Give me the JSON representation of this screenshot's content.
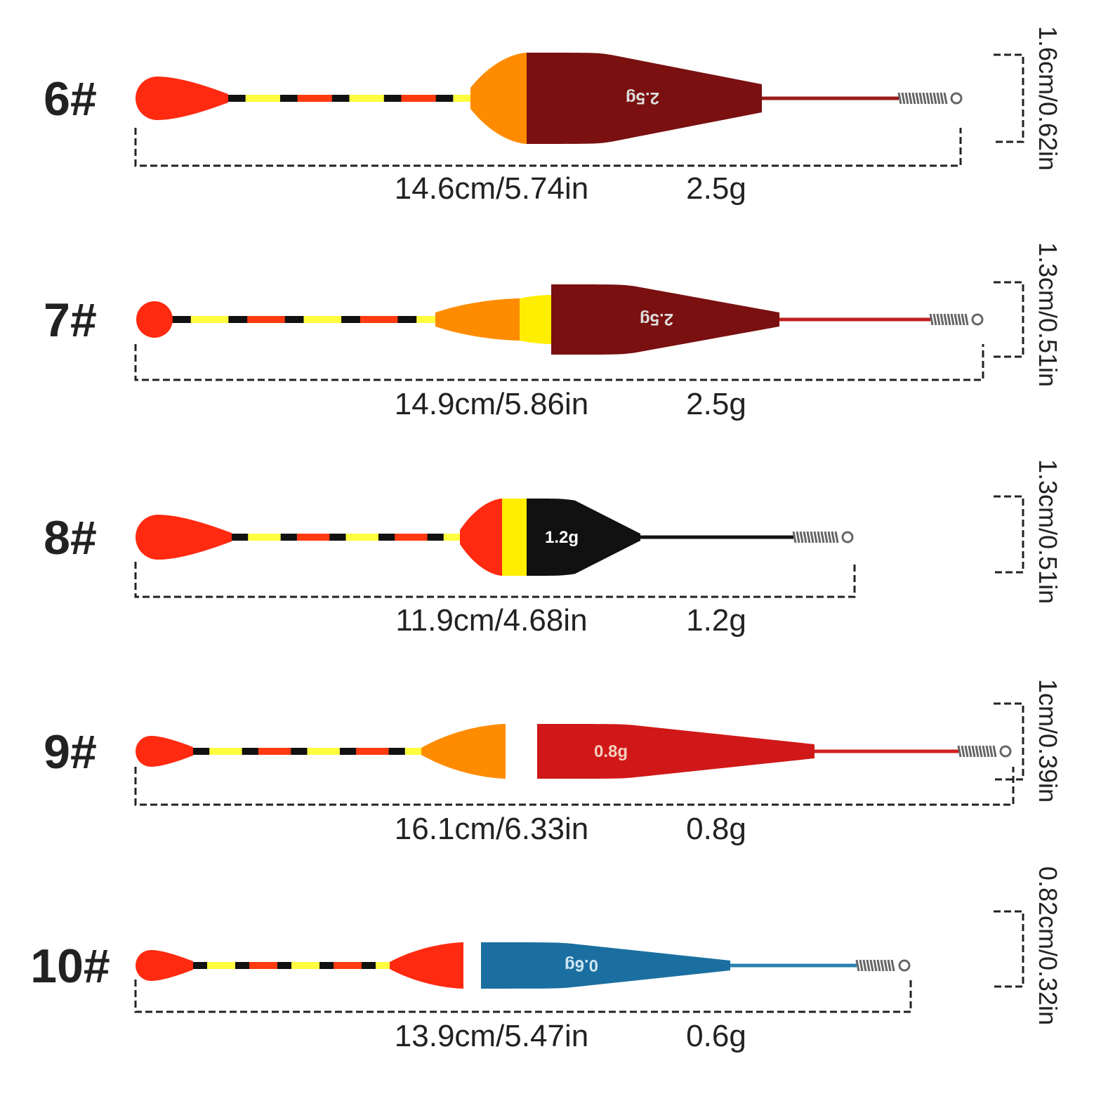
{
  "floats": [
    {
      "size": "6#",
      "length": "14.6cm/5.74in",
      "weight": "2.5g",
      "diameter": "1.6cm/0.62in",
      "body_label": "2.5g"
    },
    {
      "size": "7#",
      "length": "14.9cm/5.86in",
      "weight": "2.5g",
      "diameter": "1.3cm/0.51in",
      "body_label": "2.5g"
    },
    {
      "size": "8#",
      "length": "11.9cm/4.68in",
      "weight": "1.2g",
      "diameter": "1.3cm/0.51in",
      "body_label": "1.2g"
    },
    {
      "size": "9#",
      "length": "16.1cm/6.33in",
      "weight": "0.8g",
      "diameter": "1cm/0.39in",
      "body_label": "0.8g"
    },
    {
      "size": "10#",
      "length": "13.9cm/5.47in",
      "weight": "0.6g",
      "diameter": "0.82cm/0.32in",
      "body_label": "0.6g"
    }
  ]
}
